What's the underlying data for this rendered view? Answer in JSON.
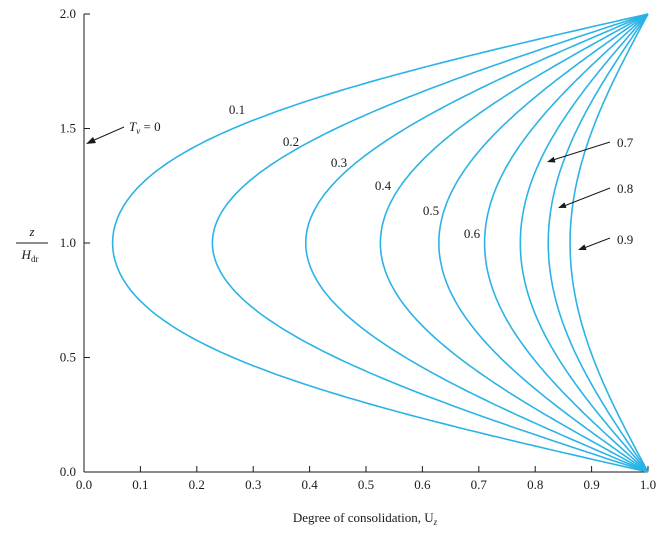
{
  "chart_data": {
    "type": "line",
    "xlabel": "Degree of consolidation, U",
    "xlabel_subscript": "z",
    "ylabel_num": "z",
    "ylabel_den": "H",
    "ylabel_den_sub": "dr",
    "xlim": [
      0.0,
      1.0
    ],
    "ylim": [
      0.0,
      2.0
    ],
    "x_ticks": [
      "0.0",
      "0.1",
      "0.2",
      "0.3",
      "0.4",
      "0.5",
      "0.6",
      "0.7",
      "0.8",
      "0.9",
      "1.0"
    ],
    "y_ticks": [
      "0.0",
      "0.5",
      "1.0",
      "1.5",
      "2.0"
    ],
    "grid": false,
    "line_color": "#2bb3e6",
    "initial_label": {
      "var": "T",
      "sub": "v",
      "rest": " = 0"
    },
    "series": [
      {
        "name": "0.1",
        "Tv": 0.1,
        "min_U_at_mid": 0.05
      },
      {
        "name": "0.2",
        "Tv": 0.2,
        "min_U_at_mid": 0.23
      },
      {
        "name": "0.3",
        "Tv": 0.3,
        "min_U_at_mid": 0.4
      },
      {
        "name": "0.4",
        "Tv": 0.4,
        "min_U_at_mid": 0.53
      },
      {
        "name": "0.5",
        "Tv": 0.5,
        "min_U_at_mid": 0.63
      },
      {
        "name": "0.6",
        "Tv": 0.6,
        "min_U_at_mid": 0.71
      },
      {
        "name": "0.7",
        "Tv": 0.7,
        "min_U_at_mid": 0.78
      },
      {
        "name": "0.8",
        "Tv": 0.8,
        "min_U_at_mid": 0.83
      },
      {
        "name": "0.9",
        "Tv": 0.9,
        "min_U_at_mid": 0.87
      }
    ]
  }
}
